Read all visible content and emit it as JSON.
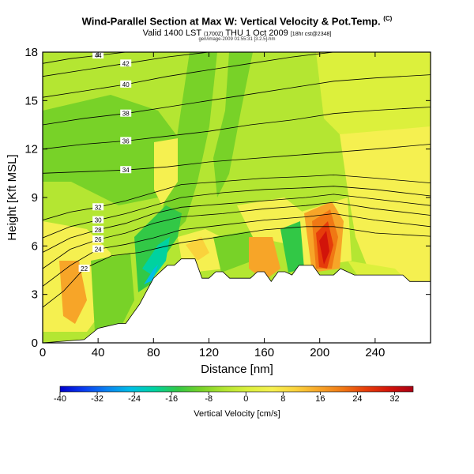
{
  "chart_data": {
    "type": "heatmap",
    "title_main": "Wind-Parallel Section at Max W: Vertical Velocity & Pot.Temp.",
    "title_mark": "(C)",
    "subtitle_valid": "Valid 1400 LST",
    "subtitle_utc": "(1700Z)",
    "subtitle_date": "THU 1 Oct 2009",
    "subtitle_init": "[18hr cst@2348]",
    "credit": "gen/image-2009 01:55:31 [3.2.5]-hm",
    "xlabel": "Distance [nm]",
    "ylabel": "Height [Kft MSL]",
    "xlim": [
      0,
      280
    ],
    "ylim": [
      0,
      18
    ],
    "xticks": [
      0,
      40,
      80,
      120,
      160,
      200,
      240
    ],
    "yticks": [
      0,
      3,
      6,
      9,
      12,
      15,
      18
    ],
    "colorbar": {
      "label": "Vertical Velocity [cm/s]",
      "range": [
        -40,
        36
      ],
      "ticks": [
        -40,
        -32,
        -24,
        -16,
        -8,
        0,
        8,
        16,
        24,
        32
      ],
      "colors": [
        "#0000cc",
        "#0a3cf0",
        "#0a82f0",
        "#00bee6",
        "#00d2a0",
        "#32c846",
        "#78d228",
        "#b4e632",
        "#dcf03c",
        "#f5f050",
        "#fad23c",
        "#f7a528",
        "#f07814",
        "#e63c0a",
        "#d2140a",
        "#aa0014"
      ]
    },
    "isotherm_labels": [
      "44",
      "42",
      "40",
      "38",
      "36",
      "34",
      "32",
      "30",
      "28",
      "26",
      "24",
      "22"
    ],
    "isentropes": [
      {
        "label": "22",
        "x": [
          0,
          15,
          30,
          50,
          70,
          90,
          100
        ],
        "y": [
          2.2,
          3.2,
          4.6,
          5.4,
          5.6,
          6.0,
          6.2
        ]
      },
      {
        "label": "",
        "x": [
          100,
          130,
          160,
          190,
          210,
          240,
          280
        ],
        "y": [
          6.2,
          6.6,
          7.0,
          7.2,
          7.2,
          6.8,
          6.6
        ]
      },
      {
        "label": "24",
        "x": [
          0,
          20,
          40,
          60,
          80,
          100,
          130,
          160,
          190,
          210,
          240,
          280
        ],
        "y": [
          3.5,
          4.8,
          5.8,
          6.1,
          6.5,
          7.0,
          7.3,
          7.6,
          7.8,
          8.0,
          7.6,
          7.2
        ]
      },
      {
        "label": "26",
        "x": [
          0,
          20,
          40,
          60,
          80,
          100,
          130,
          160,
          190,
          210,
          240,
          280
        ],
        "y": [
          4.6,
          5.8,
          6.4,
          6.8,
          7.4,
          7.8,
          8.0,
          8.3,
          8.5,
          8.7,
          8.3,
          7.9
        ]
      },
      {
        "label": "28",
        "x": [
          0,
          20,
          40,
          60,
          80,
          100,
          130,
          160,
          190,
          210,
          240,
          280
        ],
        "y": [
          5.6,
          6.5,
          7.0,
          7.4,
          8.0,
          8.4,
          8.6,
          8.8,
          9.0,
          9.2,
          8.9,
          8.5
        ]
      },
      {
        "label": "30",
        "x": [
          0,
          20,
          40,
          60,
          80,
          100,
          130,
          160,
          190,
          210,
          240,
          280
        ],
        "y": [
          6.5,
          7.2,
          7.6,
          8.0,
          8.5,
          9.0,
          9.3,
          9.5,
          9.6,
          9.7,
          9.5,
          9.1
        ]
      },
      {
        "label": "32",
        "x": [
          0,
          20,
          40,
          60,
          80,
          100,
          130,
          160,
          190,
          210,
          240,
          280
        ],
        "y": [
          7.6,
          8.1,
          8.4,
          8.8,
          9.3,
          9.8,
          10.0,
          10.2,
          10.3,
          10.4,
          10.2,
          9.9
        ]
      },
      {
        "label": "34",
        "x": [
          0,
          30,
          60,
          90,
          120,
          150,
          180,
          210,
          240,
          280
        ],
        "y": [
          10.5,
          10.6,
          10.7,
          10.9,
          11.2,
          11.4,
          11.6,
          11.8,
          12.0,
          12.3
        ]
      },
      {
        "label": "36",
        "x": [
          0,
          30,
          60,
          90,
          120,
          150,
          180,
          210,
          240,
          280
        ],
        "y": [
          12.0,
          12.3,
          12.5,
          12.8,
          13.1,
          13.5,
          13.8,
          14.2,
          14.4,
          14.6
        ]
      },
      {
        "label": "38",
        "x": [
          0,
          30,
          60,
          90,
          120,
          150,
          180,
          210,
          240,
          280
        ],
        "y": [
          13.5,
          13.9,
          14.2,
          14.6,
          15.0,
          15.4,
          15.8,
          16.2,
          16.4,
          16.6
        ]
      },
      {
        "label": "40",
        "x": [
          0,
          30,
          60,
          90,
          120,
          150,
          180,
          210,
          240,
          280
        ],
        "y": [
          15.2,
          15.6,
          16.0,
          16.5,
          16.9,
          17.3,
          17.7,
          18.0,
          18.2,
          18.4
        ]
      },
      {
        "label": "42",
        "x": [
          0,
          30,
          60,
          90,
          120,
          150,
          180
        ],
        "y": [
          16.5,
          16.9,
          17.3,
          17.7,
          18.0,
          18.3,
          18.6
        ]
      },
      {
        "label": "44",
        "x": [
          0,
          20,
          40,
          60,
          80,
          100
        ],
        "y": [
          17.3,
          17.6,
          17.8,
          18.0,
          18.2,
          18.4
        ]
      }
    ],
    "terrain": {
      "x": [
        0,
        30,
        40,
        55,
        60,
        65,
        70,
        75,
        80,
        85,
        90,
        95,
        100,
        105,
        110,
        115,
        120,
        125,
        130,
        135,
        140,
        145,
        150,
        155,
        160,
        165,
        170,
        175,
        180,
        185,
        190,
        195,
        200,
        205,
        210,
        215,
        220,
        225,
        230,
        235,
        240,
        245,
        250,
        255,
        260,
        265,
        270,
        275,
        280
      ],
      "y": [
        0,
        0.2,
        0.9,
        1.2,
        1.2,
        1.8,
        2.4,
        3.2,
        4.0,
        4.4,
        4.8,
        4.8,
        5.2,
        5.2,
        5.2,
        4.0,
        4.0,
        4.4,
        4.4,
        4.0,
        4.0,
        4.0,
        4.0,
        4.4,
        4.4,
        3.8,
        4.4,
        4.4,
        4.2,
        4.8,
        4.8,
        4.8,
        4.2,
        4.2,
        4.2,
        4.6,
        4.4,
        4.2,
        4.2,
        4.2,
        4.2,
        4.2,
        4.2,
        4.2,
        4.2,
        3.8,
        3.8,
        3.8,
        3.8
      ]
    }
  }
}
